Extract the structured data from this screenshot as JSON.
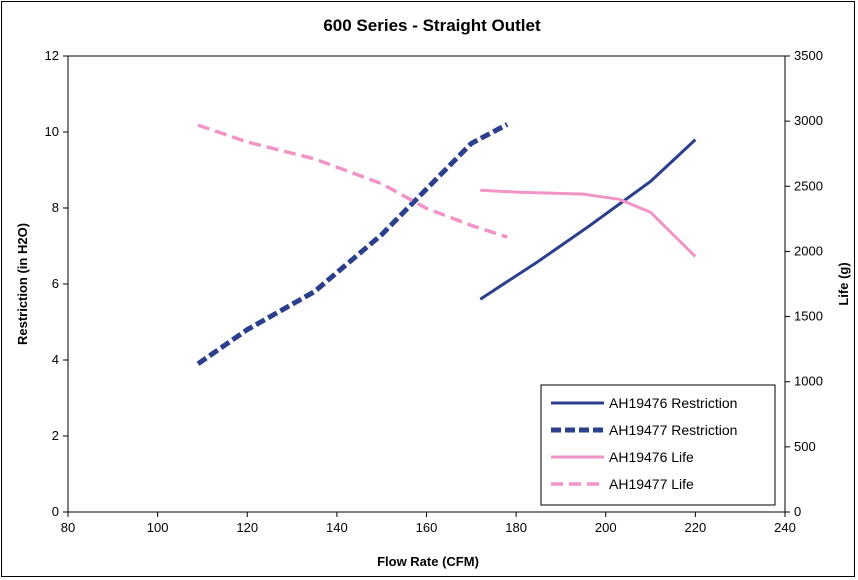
{
  "chart_data": {
    "type": "line",
    "title": "600 Series - Straight Outlet",
    "xlabel": "Flow Rate (CFM)",
    "ylabel": "Restriction (in H2O)",
    "y2label": "Life (g)",
    "xlim": [
      80,
      240
    ],
    "ylim": [
      0,
      12
    ],
    "y2lim": [
      0,
      3500
    ],
    "x_ticks": [
      "80",
      "100",
      "120",
      "140",
      "160",
      "180",
      "200",
      "220",
      "240"
    ],
    "y_ticks": [
      "0",
      "2",
      "4",
      "6",
      "8",
      "10",
      "12"
    ],
    "y2_ticks": [
      "0",
      "500",
      "1000",
      "1500",
      "2000",
      "2500",
      "3000",
      "3500"
    ],
    "grid": false,
    "legend_position": "bottom-right",
    "series": [
      {
        "name": "AH19476 Restriction",
        "axis": "left",
        "color": "#2b3f8c",
        "style": "solid",
        "x": [
          172,
          185,
          196,
          210,
          220
        ],
        "y": [
          5.6,
          6.6,
          7.5,
          8.7,
          9.8
        ]
      },
      {
        "name": "AH19477 Restriction",
        "axis": "left",
        "color": "#2b3f8c",
        "style": "dashed",
        "x": [
          109,
          120,
          135,
          150,
          160,
          170,
          178
        ],
        "y": [
          3.9,
          4.8,
          5.8,
          7.3,
          8.5,
          9.7,
          10.2
        ]
      },
      {
        "name": "AH19476 Life",
        "axis": "right",
        "color": "#f194c6",
        "style": "solid",
        "x": [
          172,
          180,
          195,
          203,
          210,
          220
        ],
        "y": [
          2470,
          2455,
          2440,
          2400,
          2300,
          1960
        ]
      },
      {
        "name": "AH19477 Life",
        "axis": "right",
        "color": "#f194c6",
        "style": "dashed",
        "x": [
          109,
          120,
          135,
          150,
          160,
          170,
          178
        ],
        "y": [
          2970,
          2840,
          2710,
          2520,
          2330,
          2200,
          2110
        ]
      }
    ]
  }
}
